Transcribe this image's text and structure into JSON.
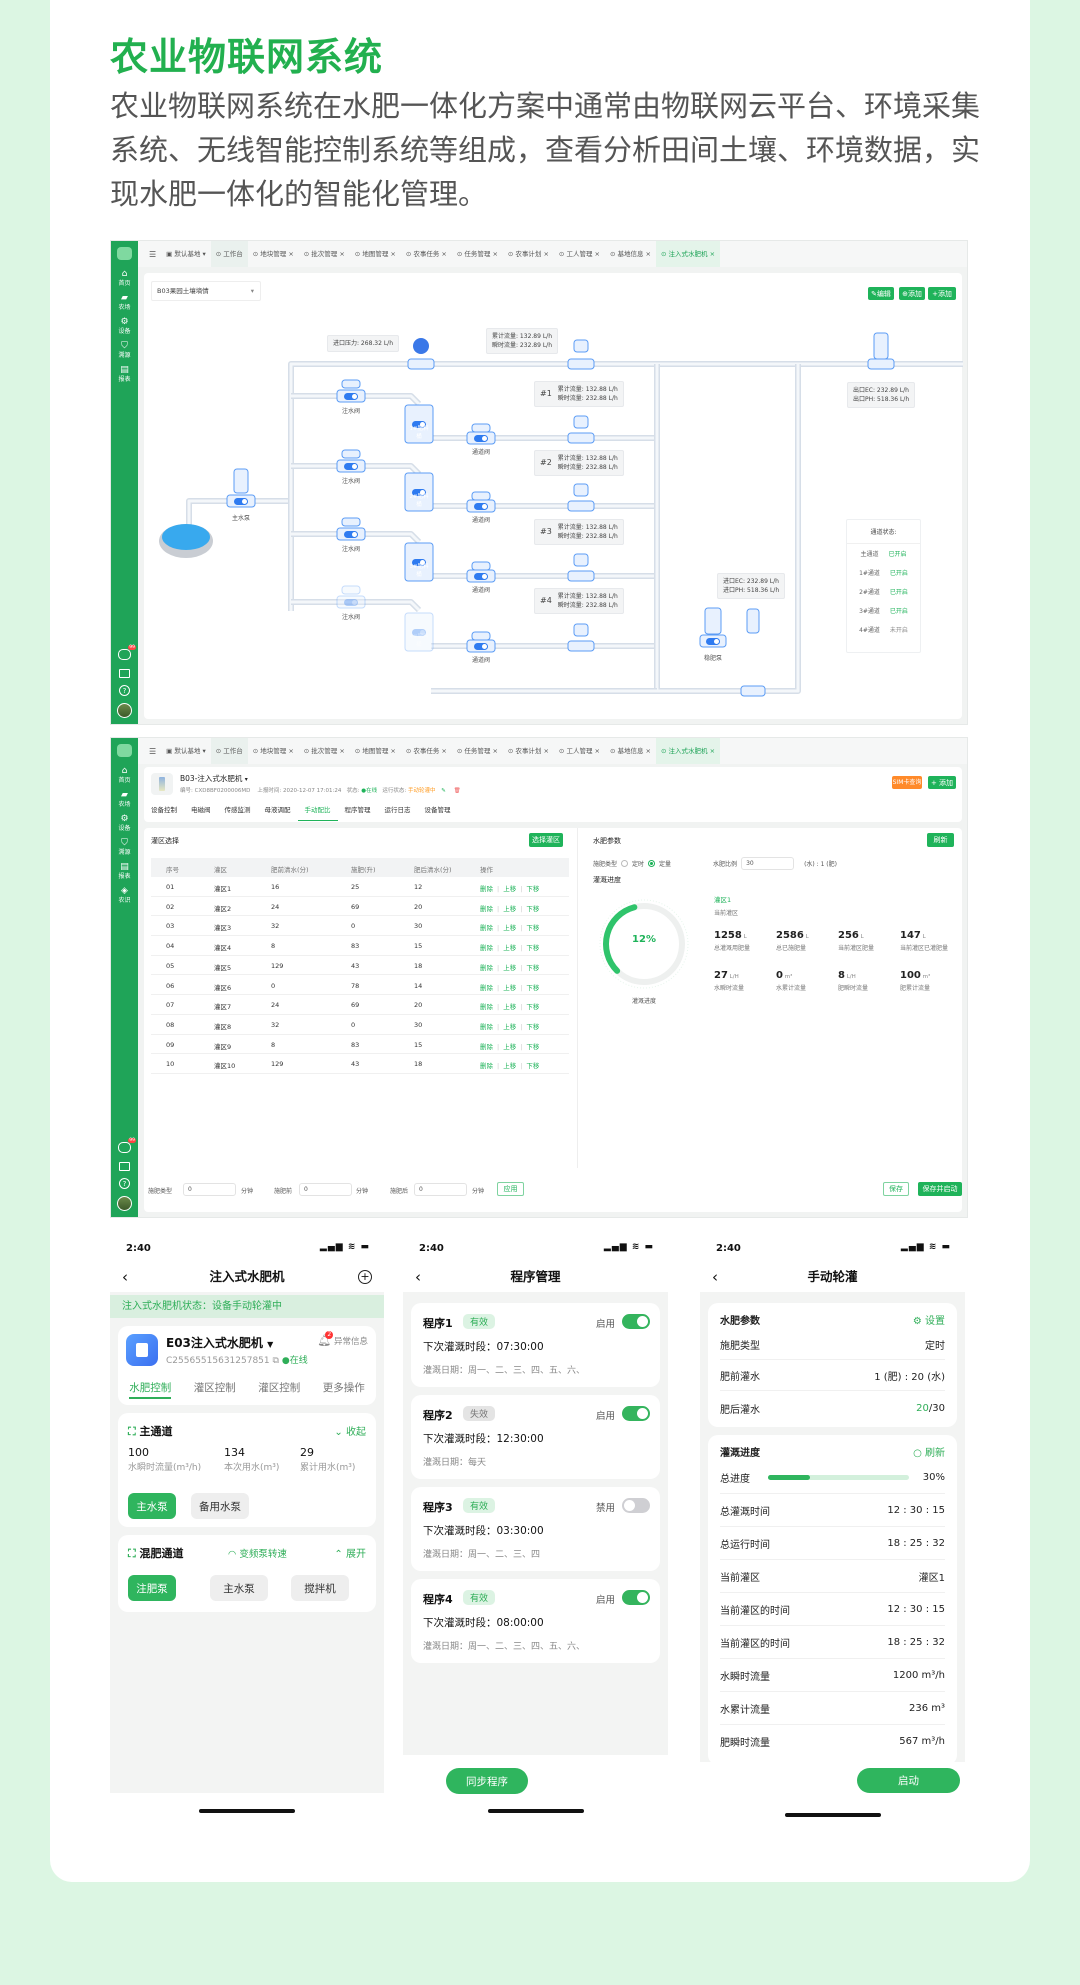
{
  "heading": {
    "title": "农业物联网系统",
    "intro": "农业物联网系统在水肥一体化方案中通常由物联网云平台、环境采集系统、无线智能控制系统等组成，查看分析田间土壤、环境数据，实现水肥一体化的智能化管理。"
  },
  "colors": {
    "brand": "#1fa458",
    "accent": "#2fb55e",
    "warning": "#ff8a2a",
    "pipe": "#dde4ec",
    "device": "#5b9cf5",
    "page_bg": "#dcf6e3"
  },
  "sidebar": {
    "items": [
      {
        "label": "首页",
        "icon": "home-icon"
      },
      {
        "label": "农场",
        "icon": "farm-icon"
      },
      {
        "label": "设备",
        "icon": "device-icon"
      },
      {
        "label": "溯源",
        "icon": "trace-icon"
      },
      {
        "label": "报表",
        "icon": "report-icon"
      }
    ],
    "items2": [
      {
        "label": "首页",
        "icon": "home-icon"
      },
      {
        "label": "农场",
        "icon": "farm-icon"
      },
      {
        "label": "设备",
        "icon": "device-icon"
      },
      {
        "label": "溯源",
        "icon": "trace-icon"
      },
      {
        "label": "报表",
        "icon": "report-icon"
      },
      {
        "label": "农识",
        "icon": "knowledge-icon"
      }
    ],
    "badge": "99"
  },
  "tabs": {
    "base": "默认基地",
    "items": [
      "工作台",
      "地块管理",
      "批次管理",
      "地图管理",
      "农事任务",
      "任务管理",
      "农事计划",
      "工人管理",
      "基地信息",
      "注入式水肥机"
    ]
  },
  "web1": {
    "select": "B03果园土壤墒情",
    "buttons": [
      "编辑",
      "添加",
      "添加"
    ],
    "inlet_pressure": "进口压力: 268.32 L/h",
    "main_flow": [
      "累计流量: 132.89 L/h",
      "瞬时流量: 232.89 L/h"
    ],
    "branches": [
      {
        "no": "#1",
        "lines": [
          "累计流量: 132.88 L/h",
          "瞬时流量: 232.88 L/h"
        ]
      },
      {
        "no": "#2",
        "lines": [
          "累计流量: 132.88 L/h",
          "瞬时流量: 232.88 L/h"
        ]
      },
      {
        "no": "#3",
        "lines": [
          "累计流量: 132.88 L/h",
          "瞬时流量: 232.88 L/h"
        ]
      },
      {
        "no": "#4",
        "lines": [
          "累计流量: 132.88 L/h",
          "瞬时流量: 232.88 L/h"
        ]
      }
    ],
    "outlet": [
      "出口EC: 232.89 L/h",
      "出口PH: 518.36 L/h"
    ],
    "inlet": [
      "进口EC: 232.89 L/h",
      "进口PH: 518.36 L/h"
    ],
    "labels": {
      "main_pump": "主水泵",
      "inject": "注水阀",
      "channel": "通道阀",
      "stir": "稳肥泵",
      "tanks": [
        "1#肥料桶",
        "2#肥料桶",
        "3#肥料桶",
        "4#肥料桶"
      ]
    },
    "channel_status": {
      "title": "通道状态:",
      "rows": [
        {
          "name": "主通道",
          "state": "已开启"
        },
        {
          "name": "1#通道",
          "state": "已开启"
        },
        {
          "name": "2#通道",
          "state": "已开启"
        },
        {
          "name": "3#通道",
          "state": "已开启"
        },
        {
          "name": "4#通道",
          "state": "未开启"
        }
      ]
    }
  },
  "web2": {
    "device": "B03-注入式水肥机",
    "meta": {
      "id": "编号: CXD8BF0200006MD",
      "time_label": "上报时间:",
      "time": "2020-12-07 17:01:24",
      "state_label": "状态:",
      "state": "在线",
      "run_label": "运行状态:",
      "run": "手动轮灌中"
    },
    "subtabs": [
      "设备控制",
      "电磁阀",
      "传感监测",
      "母液调配",
      "手动配比",
      "程序管理",
      "运行日志",
      "设备管理"
    ],
    "active_subtab": "手动配比",
    "sim": "SIM卡查询",
    "add": "+ 添加",
    "zone_title": "灌区选择",
    "zone_btn": "选择灌区",
    "table": {
      "headers": [
        "序号",
        "灌区",
        "肥前清水(分)",
        "施肥(升)",
        "肥后清水(分)",
        "操作"
      ],
      "rows": [
        [
          "01",
          "灌区1",
          "16",
          "25",
          "12"
        ],
        [
          "02",
          "灌区2",
          "24",
          "69",
          "20"
        ],
        [
          "03",
          "灌区3",
          "32",
          "0",
          "30"
        ],
        [
          "04",
          "灌区4",
          "8",
          "83",
          "15"
        ],
        [
          "05",
          "灌区5",
          "129",
          "43",
          "18"
        ],
        [
          "06",
          "灌区6",
          "0",
          "78",
          "14"
        ],
        [
          "07",
          "灌区7",
          "24",
          "69",
          "20"
        ],
        [
          "08",
          "灌区8",
          "32",
          "0",
          "30"
        ],
        [
          "09",
          "灌区9",
          "8",
          "83",
          "15"
        ],
        [
          "10",
          "灌区10",
          "129",
          "43",
          "18"
        ]
      ],
      "ops": [
        "删除",
        "上移",
        "下移"
      ]
    },
    "params": {
      "title": "水肥参数",
      "refresh": "刷新",
      "type_label": "施肥类型",
      "opt1": "定时",
      "opt2": "定量",
      "selected": "定量",
      "ratio_label": "水肥比例",
      "ratio": "30",
      "ratio_unit": "(水) : 1 (肥)",
      "progress_title": "灌溉进度",
      "progress": "12%",
      "progress_value": 12,
      "progress_caption": "灌溉进度",
      "zone": "灌区1",
      "zone_caption": "当前灌区",
      "stats": [
        {
          "v": "1258",
          "u": "L",
          "l": "总灌溉用肥量"
        },
        {
          "v": "2586",
          "u": "L",
          "l": "总已施肥量"
        },
        {
          "v": "256",
          "u": "L",
          "l": "当前灌区肥量"
        },
        {
          "v": "147",
          "u": "L",
          "l": "当前灌区已灌肥量"
        },
        {
          "v": "27",
          "u": "L/H",
          "l": "水瞬时流量"
        },
        {
          "v": "0",
          "u": "m³",
          "l": "水累计流量"
        },
        {
          "v": "8",
          "u": "L/H",
          "l": "肥瞬时流量"
        },
        {
          "v": "100",
          "u": "m³",
          "l": "肥累计流量"
        }
      ]
    },
    "footer": {
      "f1": "施肥类型",
      "f2": "施肥前",
      "f3": "施肥后",
      "v1": "0",
      "v2": "0",
      "v3": "0",
      "unit": "分钟",
      "apply": "应用",
      "save": "保存",
      "save_start": "保存并启动"
    }
  },
  "phone1": {
    "time": "2:40",
    "title": "注入式水肥机",
    "banner": "注入式水肥机状态：设备手动轮灌中",
    "name": "E03注入式水肥机",
    "serial": "C255655156312578​51",
    "online": "在线",
    "alarm": "异常信息",
    "alarm_count": "2",
    "tabs": [
      "水肥控制",
      "灌区控制",
      "灌区控制",
      "更多操作"
    ],
    "main": {
      "title": "主通道",
      "toggle": "收起",
      "stats": [
        {
          "v": "100",
          "l": "水瞬时流量(m³/h)"
        },
        {
          "v": "134",
          "l": "本次用水(m³)"
        },
        {
          "v": "29",
          "l": "累计用水(m³)"
        }
      ],
      "btns": [
        "主水泵",
        "备用水泵"
      ]
    },
    "mix": {
      "title": "混肥通道",
      "speed": "变频泵转速",
      "toggle": "展开",
      "btns": [
        "注肥泵",
        "主水泵",
        "搅拌机"
      ]
    }
  },
  "phone2": {
    "time": "2:40",
    "title": "程序管理",
    "sync": "同步程序",
    "programs": [
      {
        "name": "程序1",
        "badge": "有效",
        "valid": true,
        "switch_label": "启用",
        "on": true,
        "next": "下次灌溉时段：07:30:00",
        "days": "灌溉日期：周一、二、三、四、五、六、"
      },
      {
        "name": "程序2",
        "badge": "失效",
        "valid": false,
        "switch_label": "启用",
        "on": true,
        "next": "下次灌溉时段：12:30:00",
        "days": "灌溉日期：每天"
      },
      {
        "name": "程序3",
        "badge": "有效",
        "valid": true,
        "switch_label": "禁用",
        "on": false,
        "next": "下次灌溉时段：03:30:00",
        "days": "灌溉日期：周一、二、三、四"
      },
      {
        "name": "程序4",
        "badge": "有效",
        "valid": true,
        "switch_label": "启用",
        "on": true,
        "next": "下次灌溉时段：08:00:00",
        "days": "灌溉日期：周一、二、三、四、五、六、"
      }
    ]
  },
  "phone3": {
    "time": "2:40",
    "title": "手动轮灌",
    "params_title": "水肥参数",
    "settings": "设置",
    "p_rows": [
      {
        "k": "施肥类型",
        "v": "定时"
      },
      {
        "k": "肥前灌水",
        "v": "1 (肥) : 20 (水)"
      }
    ],
    "after_k": "肥后灌水",
    "after_done": "20",
    "after_total": "/30",
    "prog_title": "灌溉进度",
    "refresh": "刷新",
    "total_k": "总进度",
    "total_v": "30%",
    "total_value": 30,
    "rows": [
      {
        "k": "总灌溉时间",
        "v": "12 : 30 : 15"
      },
      {
        "k": "总运行时间",
        "v": "18 : 25 : 32"
      },
      {
        "k": "当前灌区",
        "v": "灌区1"
      },
      {
        "k": "当前灌区的时间",
        "v": "12 : 30 : 15"
      },
      {
        "k": "当前灌区的时间",
        "v": "18 : 25 : 32"
      },
      {
        "k": "水瞬时流量",
        "v": "1200 m³/h"
      },
      {
        "k": "水累计流量",
        "v": "236 m³"
      },
      {
        "k": "肥瞬时流量",
        "v": "567 m³/h"
      }
    ],
    "start": "启动"
  }
}
